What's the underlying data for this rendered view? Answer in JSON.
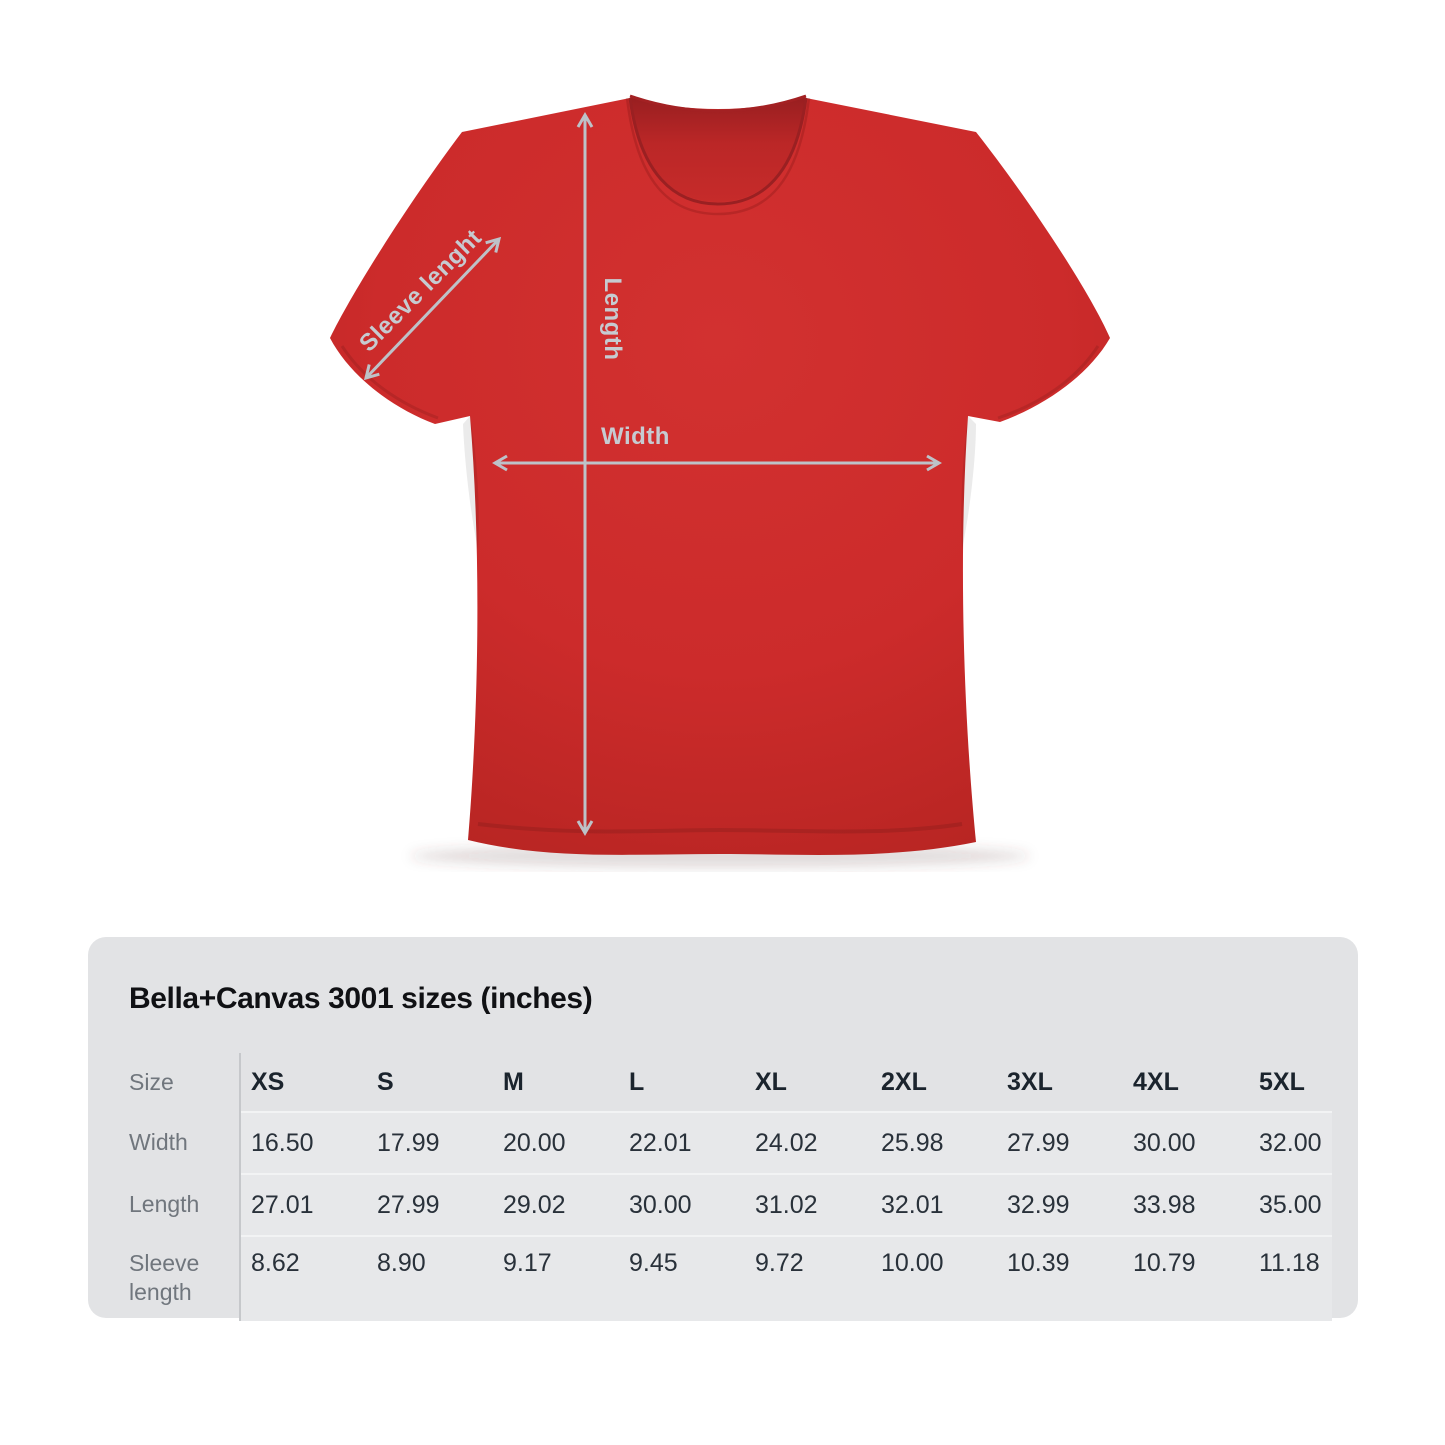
{
  "shirt": {
    "color": "#cc2b2b",
    "annotation_color": "#c6cbd1",
    "annotations": {
      "sleeve_label": "Sleeve lenght",
      "length_label": "Length",
      "width_label": "Width"
    }
  },
  "size_chart": {
    "title": "Bella+Canvas 3001 sizes (inches)",
    "corner_label": "Size",
    "card_background": "#e2e3e5",
    "columns": [
      "XS",
      "S",
      "M",
      "L",
      "XL",
      "2XL",
      "3XL",
      "4XL",
      "5XL"
    ],
    "rows": [
      {
        "label": "Width",
        "values": [
          "16.50",
          "17.99",
          "20.00",
          "22.01",
          "24.02",
          "25.98",
          "27.99",
          "30.00",
          "32.00"
        ]
      },
      {
        "label": "Length",
        "values": [
          "27.01",
          "27.99",
          "29.02",
          "30.00",
          "31.02",
          "32.01",
          "32.99",
          "33.98",
          "35.00"
        ]
      },
      {
        "label": "Sleeve length",
        "values": [
          "8.62",
          "8.90",
          "9.17",
          "9.45",
          "9.72",
          "10.00",
          "10.39",
          "10.79",
          "11.18"
        ]
      }
    ]
  }
}
